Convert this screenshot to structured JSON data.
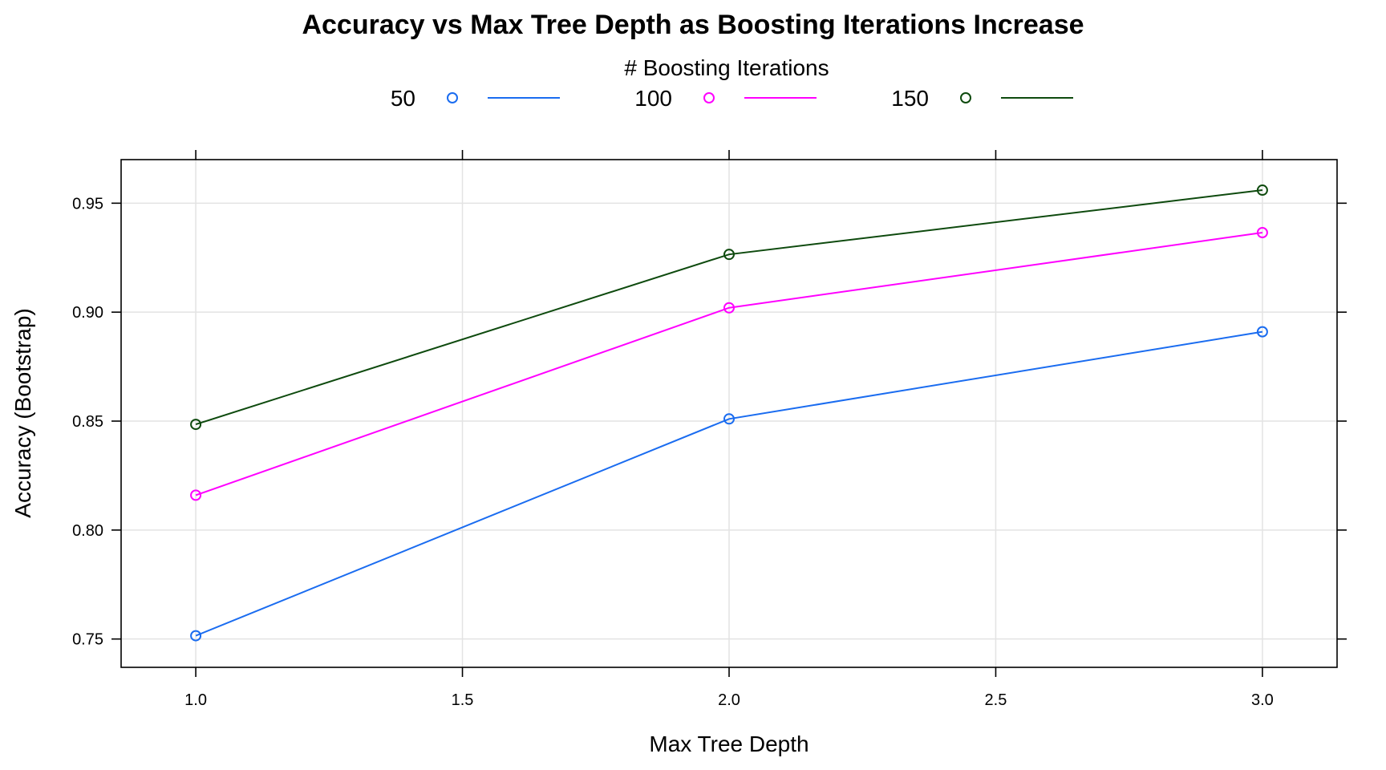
{
  "chart_data": {
    "type": "line",
    "title": "Accuracy vs Max Tree Depth as Boosting Iterations Increase",
    "legend": {
      "title": "# Boosting Iterations",
      "placement": "top"
    },
    "xlabel": "Max Tree Depth",
    "ylabel": "Accuracy (Bootstrap)",
    "x": [
      1.0,
      2.0,
      3.0
    ],
    "xlim": [
      0.86,
      3.14
    ],
    "ylim": [
      0.737,
      0.97
    ],
    "xticks": [
      "1.0",
      "1.5",
      "2.0",
      "2.5",
      "3.0"
    ],
    "yticks": [
      "0.75",
      "0.80",
      "0.85",
      "0.90",
      "0.95"
    ],
    "grid": true,
    "markers": "open-circle",
    "series": [
      {
        "name": "50",
        "color": "#1a6cf0",
        "values": [
          0.7515,
          0.851,
          0.891
        ]
      },
      {
        "name": "100",
        "color": "#ff00ff",
        "values": [
          0.816,
          0.902,
          0.9365
        ]
      },
      {
        "name": "150",
        "color": "#0e4a0e",
        "values": [
          0.8485,
          0.9265,
          0.956
        ]
      }
    ]
  }
}
